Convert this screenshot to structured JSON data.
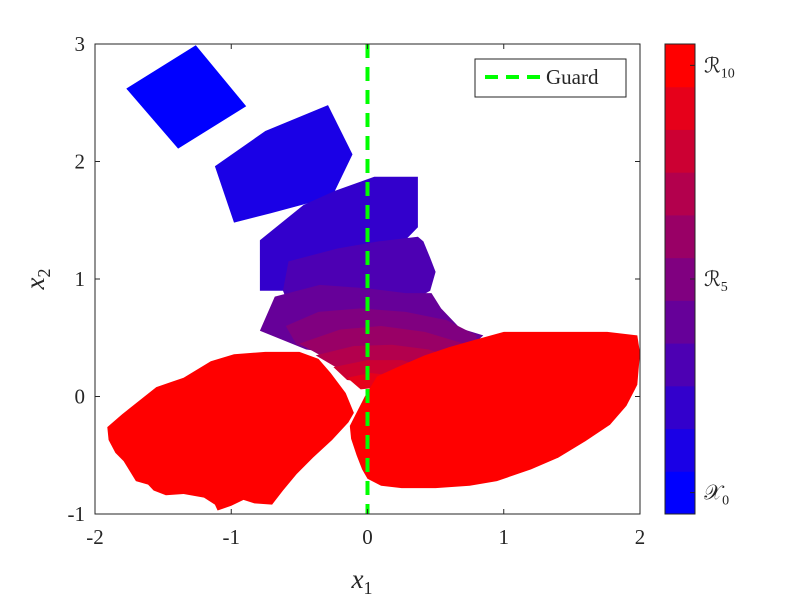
{
  "chart_data": {
    "type": "area",
    "title": "",
    "xlabel": {
      "base": "x",
      "sub": "1"
    },
    "ylabel": {
      "base": "x",
      "sub": "2"
    },
    "xlim": [
      -2,
      2
    ],
    "ylim": [
      -1,
      3
    ],
    "xticks": [
      -2,
      -1,
      0,
      1,
      2
    ],
    "yticks": [
      -1,
      0,
      1,
      2,
      3
    ],
    "xtick_labels": [
      "-2",
      "-1",
      "0",
      "1",
      "2"
    ],
    "ytick_labels": [
      "-1",
      "0",
      "1",
      "2",
      "3"
    ],
    "grid": false,
    "colormap": {
      "start": "#0000ff",
      "end": "#ff0000",
      "levels": 11
    },
    "colorbar_ticks": [
      {
        "level": 0,
        "base": "𝒳",
        "sub": "0"
      },
      {
        "level": 5,
        "base": "ℛ",
        "sub": "5"
      },
      {
        "level": 10,
        "base": "ℛ",
        "sub": "10"
      }
    ],
    "guard": {
      "name": "Guard",
      "x": 0,
      "color": "#00ff00",
      "style": "dashed"
    },
    "legend_position": "top-right",
    "sets": [
      {
        "level": 0,
        "polygons": [
          [
            [
              -1.77,
              2.62
            ],
            [
              -1.26,
              2.99
            ],
            [
              -0.89,
              2.47
            ],
            [
              -1.39,
              2.11
            ]
          ]
        ]
      },
      {
        "level": 1,
        "polygons": [
          [
            [
              -1.12,
              1.96
            ],
            [
              -0.75,
              2.26
            ],
            [
              -0.29,
              2.48
            ],
            [
              -0.11,
              2.06
            ],
            [
              -0.26,
              1.7
            ],
            [
              -0.71,
              1.56
            ],
            [
              -0.98,
              1.48
            ]
          ]
        ]
      },
      {
        "level": 2,
        "polygons": [
          [
            [
              -0.79,
              1.33
            ],
            [
              -0.47,
              1.63
            ],
            [
              -0.24,
              1.75
            ],
            [
              0.05,
              1.87
            ],
            [
              0.37,
              1.87
            ],
            [
              0.37,
              1.44
            ],
            [
              0.16,
              1.19
            ],
            [
              -0.1,
              1.01
            ],
            [
              -0.46,
              0.9
            ],
            [
              -0.79,
              0.9
            ]
          ]
        ]
      },
      {
        "level": 3,
        "polygons": [
          [
            [
              -0.58,
              1.15
            ],
            [
              -0.22,
              1.26
            ],
            [
              0.08,
              1.32
            ],
            [
              0.37,
              1.36
            ],
            [
              0.41,
              1.32
            ],
            [
              0.46,
              1.18
            ],
            [
              0.5,
              1.06
            ],
            [
              0.46,
              0.9
            ],
            [
              0.23,
              0.75
            ],
            [
              -0.15,
              0.68
            ],
            [
              -0.56,
              0.72
            ],
            [
              -0.62,
              0.9
            ]
          ]
        ]
      },
      {
        "level": 4,
        "polygons": [
          [
            [
              -0.79,
              0.56
            ],
            [
              -0.68,
              0.85
            ],
            [
              -0.35,
              0.95
            ],
            [
              0.0,
              0.92
            ],
            [
              0.28,
              0.88
            ],
            [
              0.47,
              0.88
            ],
            [
              0.54,
              0.75
            ],
            [
              0.68,
              0.58
            ],
            [
              0.85,
              0.52
            ],
            [
              0.72,
              0.38
            ],
            [
              0.45,
              0.31
            ],
            [
              0.0,
              0.33
            ],
            [
              -0.45,
              0.4
            ]
          ]
        ]
      },
      {
        "level": 5,
        "polygons": [
          [
            [
              -0.6,
              0.6
            ],
            [
              -0.36,
              0.72
            ],
            [
              -0.05,
              0.75
            ],
            [
              0.28,
              0.72
            ],
            [
              0.58,
              0.65
            ],
            [
              0.8,
              0.52
            ],
            [
              0.8,
              0.36
            ],
            [
              0.55,
              0.3
            ],
            [
              0.2,
              0.3
            ],
            [
              -0.2,
              0.34
            ],
            [
              -0.52,
              0.44
            ]
          ]
        ]
      },
      {
        "level": 6,
        "polygons": [
          [
            [
              -0.5,
              0.45
            ],
            [
              -0.2,
              0.57
            ],
            [
              0.1,
              0.6
            ],
            [
              0.42,
              0.55
            ],
            [
              0.68,
              0.46
            ],
            [
              0.85,
              0.38
            ],
            [
              0.6,
              0.27
            ],
            [
              0.3,
              0.24
            ],
            [
              0.0,
              0.26
            ],
            [
              -0.3,
              0.32
            ]
          ]
        ]
      },
      {
        "level": 7,
        "polygons": [
          [
            [
              -0.38,
              0.35
            ],
            [
              -0.1,
              0.43
            ],
            [
              0.18,
              0.44
            ],
            [
              0.45,
              0.4
            ],
            [
              0.6,
              0.34
            ],
            [
              0.4,
              0.22
            ],
            [
              0.12,
              0.18
            ],
            [
              -0.16,
              0.2
            ]
          ]
        ]
      },
      {
        "level": 8,
        "polygons": [
          [
            [
              -0.25,
              0.25
            ],
            [
              0.0,
              0.31
            ],
            [
              0.25,
              0.31
            ],
            [
              0.4,
              0.26
            ],
            [
              0.22,
              0.15
            ],
            [
              0.0,
              0.12
            ],
            [
              -0.15,
              0.14
            ]
          ]
        ]
      },
      {
        "level": 9,
        "polygons": [
          [
            [
              -0.15,
              0.16
            ],
            [
              0.02,
              0.2
            ],
            [
              0.18,
              0.18
            ],
            [
              0.1,
              0.08
            ],
            [
              -0.05,
              0.06
            ]
          ]
        ]
      },
      {
        "level": 10,
        "polygons": [
          [
            [
              -1.91,
              -0.26
            ],
            [
              -1.8,
              -0.15
            ],
            [
              -1.55,
              0.08
            ],
            [
              -1.35,
              0.16
            ],
            [
              -1.15,
              0.3
            ],
            [
              -0.98,
              0.36
            ],
            [
              -0.75,
              0.38
            ],
            [
              -0.5,
              0.38
            ],
            [
              -0.36,
              0.32
            ],
            [
              -0.27,
              0.2
            ],
            [
              -0.16,
              0.03
            ],
            [
              -0.1,
              -0.14
            ],
            [
              -0.14,
              -0.22
            ],
            [
              -0.26,
              -0.37
            ],
            [
              -0.4,
              -0.52
            ],
            [
              -0.52,
              -0.66
            ],
            [
              -0.62,
              -0.8
            ],
            [
              -0.7,
              -0.92
            ],
            [
              -0.83,
              -0.91
            ],
            [
              -0.91,
              -0.88
            ],
            [
              -1.0,
              -0.93
            ],
            [
              -1.1,
              -0.97
            ],
            [
              -1.12,
              -0.92
            ],
            [
              -1.2,
              -0.86
            ],
            [
              -1.35,
              -0.83
            ],
            [
              -1.48,
              -0.84
            ],
            [
              -1.57,
              -0.8
            ],
            [
              -1.61,
              -0.75
            ],
            [
              -1.7,
              -0.72
            ],
            [
              -1.79,
              -0.55
            ],
            [
              -1.85,
              -0.48
            ],
            [
              -1.9,
              -0.37
            ]
          ],
          [
            [
              -0.13,
              -0.25
            ],
            [
              -0.02,
              0.0
            ],
            [
              0.07,
              0.17
            ],
            [
              0.22,
              0.25
            ],
            [
              0.42,
              0.35
            ],
            [
              0.6,
              0.42
            ],
            [
              0.78,
              0.48
            ],
            [
              1.0,
              0.55
            ],
            [
              1.4,
              0.55
            ],
            [
              1.76,
              0.55
            ],
            [
              1.98,
              0.52
            ],
            [
              2.0,
              0.37
            ],
            [
              1.98,
              0.1
            ],
            [
              1.9,
              -0.08
            ],
            [
              1.78,
              -0.24
            ],
            [
              1.6,
              -0.38
            ],
            [
              1.4,
              -0.52
            ],
            [
              1.2,
              -0.62
            ],
            [
              0.95,
              -0.72
            ],
            [
              0.75,
              -0.76
            ],
            [
              0.5,
              -0.78
            ],
            [
              0.25,
              -0.78
            ],
            [
              0.1,
              -0.76
            ],
            [
              0.0,
              -0.7
            ],
            [
              -0.04,
              -0.62
            ],
            [
              -0.08,
              -0.5
            ],
            [
              -0.12,
              -0.36
            ]
          ]
        ]
      }
    ]
  }
}
